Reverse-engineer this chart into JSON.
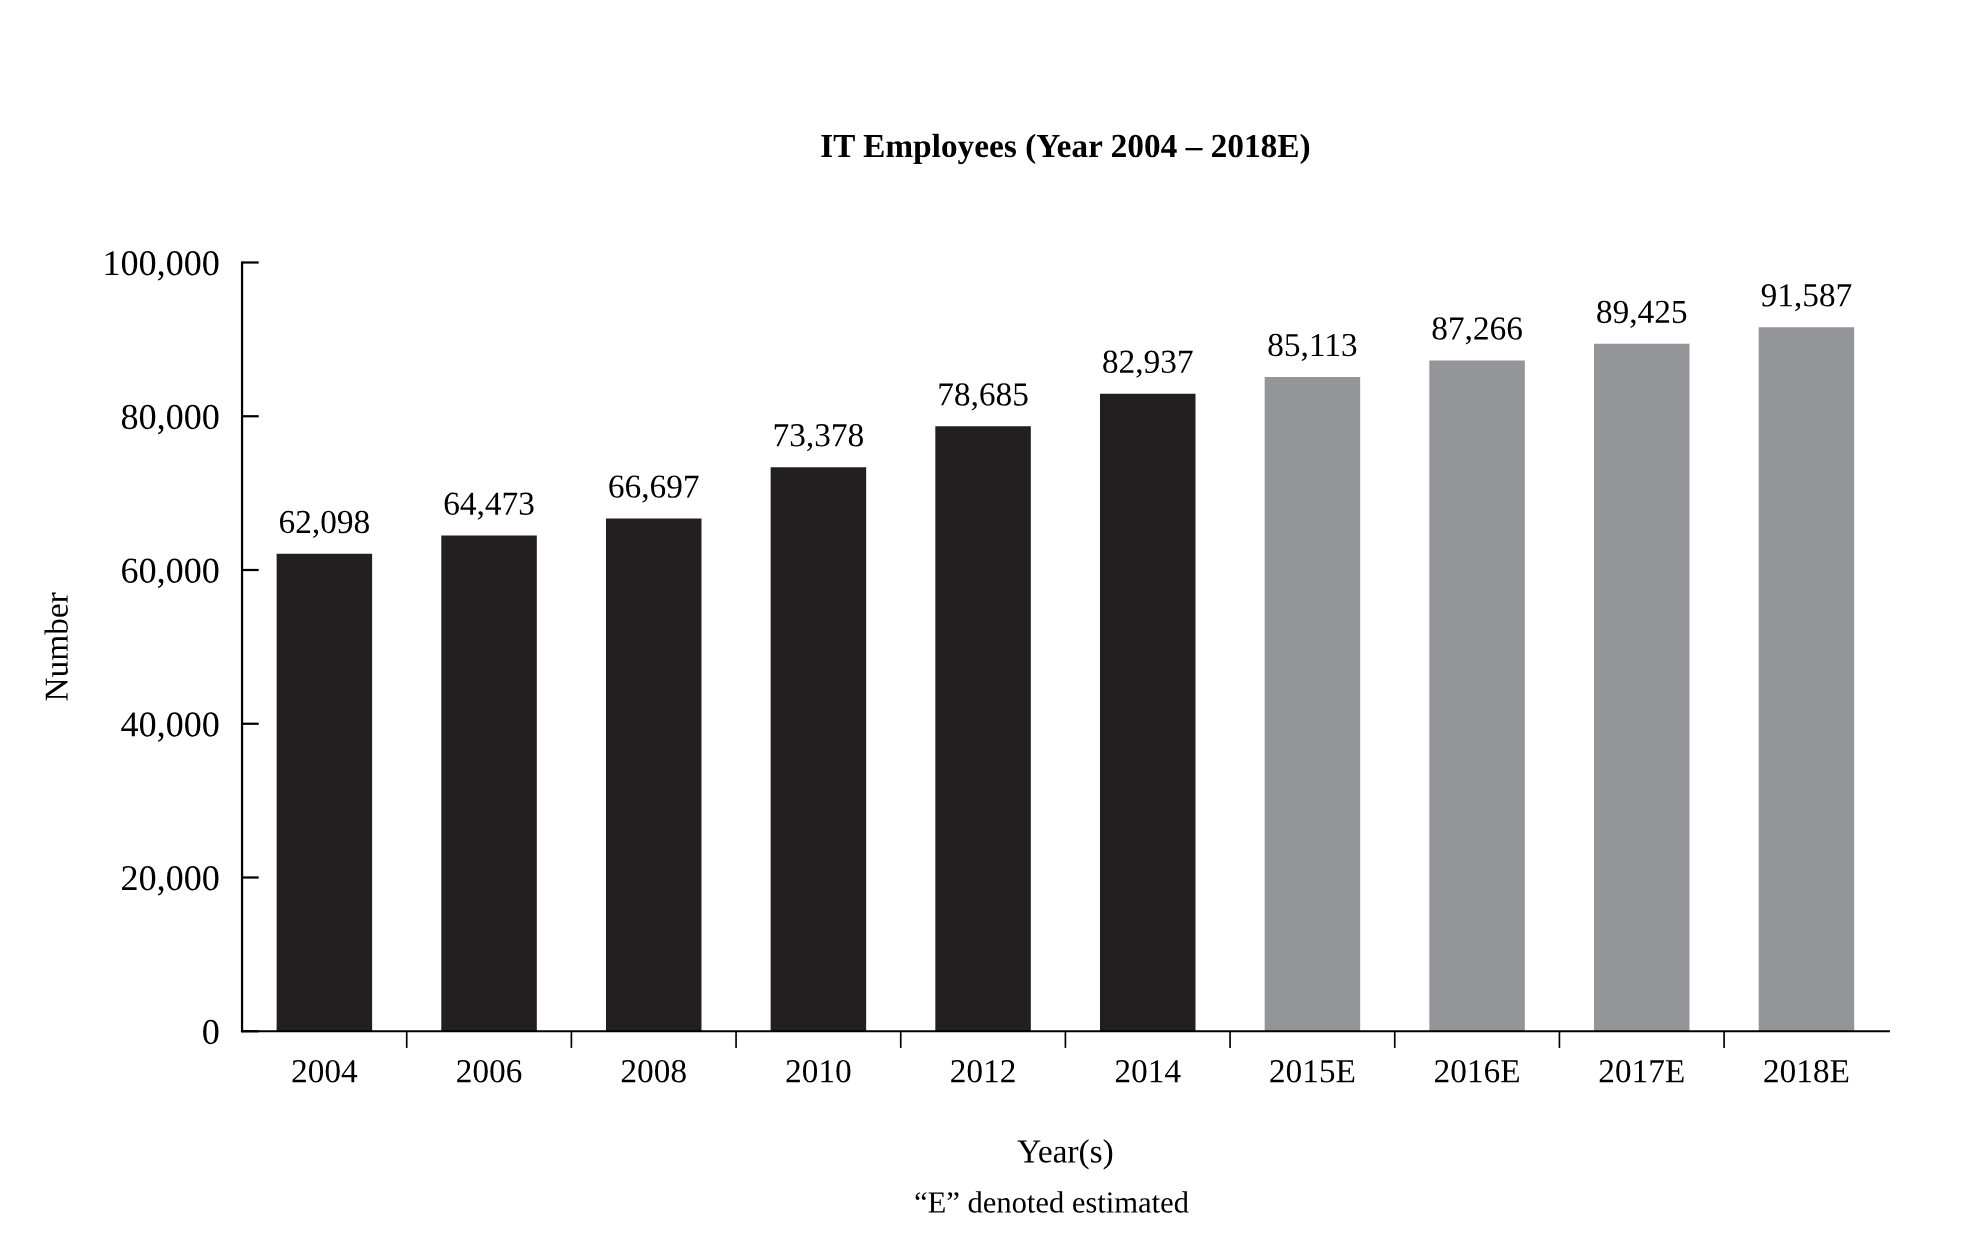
{
  "chart_data": {
    "type": "bar",
    "title": "IT Employees (Year 2004 – 2018E)",
    "xlabel": "Year(s)",
    "ylabel": "Number",
    "categories": [
      "2004",
      "2006",
      "2008",
      "2010",
      "2012",
      "2014",
      "2015E",
      "2016E",
      "2017E",
      "2018E"
    ],
    "values": [
      62098,
      64473,
      66697,
      73378,
      78685,
      82937,
      85113,
      87266,
      89425,
      91587
    ],
    "colors": [
      "#231f20",
      "#231f20",
      "#231f20",
      "#231f20",
      "#231f20",
      "#231f20",
      "#939598",
      "#939598",
      "#939598",
      "#939598"
    ],
    "value_labels": [
      "62,098",
      "64,473",
      "66,697",
      "73,378",
      "78,685",
      "82,937",
      "85,113",
      "87,266",
      "89,425",
      "91,587"
    ],
    "ylim": [
      0,
      100000
    ],
    "yticks": [
      {
        "value": 0,
        "label": "0"
      },
      {
        "value": 20000,
        "label": "20,000"
      },
      {
        "value": 40000,
        "label": "40,000"
      },
      {
        "value": 60000,
        "label": "60,000"
      },
      {
        "value": 80000,
        "label": "80,000"
      },
      {
        "value": 100000,
        "label": "100,000"
      }
    ],
    "grid": false,
    "legend": false,
    "annotations": [
      "“E” denoted estimated"
    ]
  }
}
